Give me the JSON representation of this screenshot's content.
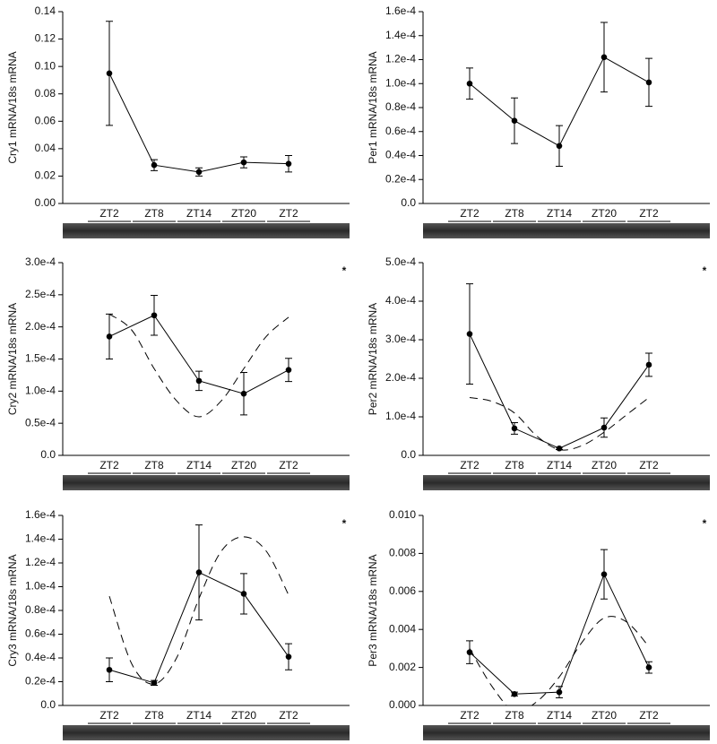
{
  "chart_data": [
    {
      "type": "line",
      "ylabel": "Cry1 mRNA/18s mRNA",
      "categories": [
        "ZT2",
        "ZT8",
        "ZT14",
        "ZT20",
        "ZT2"
      ],
      "values": [
        0.095,
        0.028,
        0.023,
        0.03,
        0.029
      ],
      "errors": [
        0.038,
        0.004,
        0.003,
        0.004,
        0.006
      ],
      "ylim": [
        0,
        0.14
      ],
      "yticks": [
        {
          "value": 0,
          "label": "0.00"
        },
        0.02,
        0.04,
        0.06,
        0.08,
        {
          "value": 0.1,
          "label": "0.10"
        },
        0.12,
        0.14
      ]
    },
    {
      "type": "line",
      "ylabel": "Per1 mRNA/18s mRNA",
      "categories": [
        "ZT2",
        "ZT8",
        "ZT14",
        "ZT20",
        "ZT2"
      ],
      "values": [
        0.0001,
        6.9e-05,
        4.8e-05,
        0.000122,
        0.000101
      ],
      "errors": [
        1.3e-05,
        1.9e-05,
        1.7e-05,
        2.9e-05,
        2e-05
      ],
      "ylim": [
        0,
        0.00016
      ],
      "yticks": [
        {
          "value": 0,
          "label": "0.0"
        },
        {
          "value": 2e-05,
          "label": "0.2e-4"
        },
        {
          "value": 4e-05,
          "label": "0.4e-4"
        },
        {
          "value": 6e-05,
          "label": "0.6e-4"
        },
        {
          "value": 8e-05,
          "label": "0.8e-4"
        },
        {
          "value": 0.0001,
          "label": "1.0e-4"
        },
        {
          "value": 0.00012,
          "label": "1.2e-4"
        },
        {
          "value": 0.00014,
          "label": "1.4e-4"
        },
        {
          "value": 0.00016,
          "label": "1.6e-4"
        }
      ]
    },
    {
      "type": "line",
      "ylabel": "Cry2 mRNA/18s mRNA",
      "annotation": "*",
      "categories": [
        "ZT2",
        "ZT8",
        "ZT14",
        "ZT20",
        "ZT2"
      ],
      "values": [
        0.000185,
        0.000218,
        0.000116,
        9.6e-05,
        0.000133
      ],
      "errors": [
        3.5e-05,
        3.1e-05,
        1.5e-05,
        3.3e-05,
        1.8e-05
      ],
      "fit": {
        "x": [
          0,
          0.5,
          1,
          1.5,
          2,
          2.5,
          3,
          3.5,
          4
        ],
        "values": [
          0.00022,
          0.000195,
          0.000135,
          8.5e-05,
          6e-05,
          8.5e-05,
          0.000135,
          0.000185,
          0.000215
        ]
      },
      "ylim": [
        0,
        0.0003
      ],
      "yticks": [
        {
          "value": 0,
          "label": "0.0"
        },
        {
          "value": 5e-05,
          "label": "0.5e-4"
        },
        {
          "value": 0.0001,
          "label": "1.0e-4"
        },
        {
          "value": 0.00015,
          "label": "1.5e-4"
        },
        {
          "value": 0.0002,
          "label": "2.0e-4"
        },
        {
          "value": 0.00025,
          "label": "2.5e-4"
        },
        {
          "value": 0.0003,
          "label": "3.0e-4"
        }
      ]
    },
    {
      "type": "line",
      "ylabel": "Per2 mRNA/18s mRNA",
      "annotation": "*",
      "categories": [
        "ZT2",
        "ZT8",
        "ZT14",
        "ZT20",
        "ZT2"
      ],
      "values": [
        0.000315,
        7e-05,
        1.8e-05,
        7.2e-05,
        0.000235
      ],
      "errors": [
        0.00013,
        1.5e-05,
        3e-06,
        2.5e-05,
        3e-05
      ],
      "fit": {
        "x": [
          0,
          0.5,
          1,
          1.5,
          2,
          2.5,
          3,
          3.5,
          4
        ],
        "values": [
          0.00015,
          0.00014,
          0.00011,
          5e-05,
          1.5e-05,
          2.5e-05,
          6e-05,
          0.000105,
          0.00015
        ]
      },
      "ylim": [
        0,
        0.0005
      ],
      "yticks": [
        {
          "value": 0,
          "label": "0.0"
        },
        {
          "value": 0.0001,
          "label": "1.0e-4"
        },
        {
          "value": 0.0002,
          "label": "2.0e-4"
        },
        {
          "value": 0.0003,
          "label": "3.0e-4"
        },
        {
          "value": 0.0004,
          "label": "4.0e-4"
        },
        {
          "value": 0.0005,
          "label": "5.0e-4"
        }
      ]
    },
    {
      "type": "line",
      "ylabel": "Cry3 mRNA/18s mRNA",
      "annotation": "*",
      "categories": [
        "ZT2",
        "ZT8",
        "ZT14",
        "ZT20",
        "ZT2"
      ],
      "values": [
        3e-05,
        1.9e-05,
        0.000112,
        9.4e-05,
        4.1e-05
      ],
      "errors": [
        1e-05,
        2e-06,
        4e-05,
        1.7e-05,
        1.1e-05
      ],
      "fit": {
        "x": [
          0,
          0.5,
          1,
          1.5,
          2,
          2.5,
          3,
          3.5,
          4
        ],
        "values": [
          9.2e-05,
          3.5e-05,
          1.8e-05,
          4e-05,
          9e-05,
          0.00013,
          0.000142,
          0.00013,
          9.3e-05
        ]
      },
      "ylim": [
        0,
        0.00016
      ],
      "yticks": [
        {
          "value": 0,
          "label": "0.0"
        },
        {
          "value": 2e-05,
          "label": "0.2e-4"
        },
        {
          "value": 4e-05,
          "label": "0.4e-4"
        },
        {
          "value": 6e-05,
          "label": "0.6e-4"
        },
        {
          "value": 8e-05,
          "label": "0.8e-4"
        },
        {
          "value": 0.0001,
          "label": "1.0e-4"
        },
        {
          "value": 0.00012,
          "label": "1.2e-4"
        },
        {
          "value": 0.00014,
          "label": "1.4e-4"
        },
        {
          "value": 0.00016,
          "label": "1.6e-4"
        }
      ]
    },
    {
      "type": "line",
      "ylabel": "Per3 mRNA/18s mRNA",
      "annotation": "*",
      "categories": [
        "ZT2",
        "ZT8",
        "ZT14",
        "ZT20",
        "ZT2"
      ],
      "values": [
        0.0028,
        0.0006,
        0.0007,
        0.0069,
        0.002
      ],
      "errors": [
        0.0006,
        0.0001,
        0.0003,
        0.0013,
        0.0003
      ],
      "fit": {
        "x": [
          0,
          0.5,
          1,
          1.5,
          2,
          2.5,
          3,
          3.5,
          4
        ],
        "values": [
          0.003,
          0.001,
          -0.0003,
          0.0002,
          0.0015,
          0.0033,
          0.0046,
          0.0044,
          0.0031
        ]
      },
      "ylim": [
        0,
        0.01
      ],
      "yticks": [
        {
          "value": 0,
          "label": "0.000"
        },
        0.002,
        0.004,
        0.006,
        0.008,
        {
          "value": 0.01,
          "label": "0.010"
        }
      ]
    }
  ]
}
